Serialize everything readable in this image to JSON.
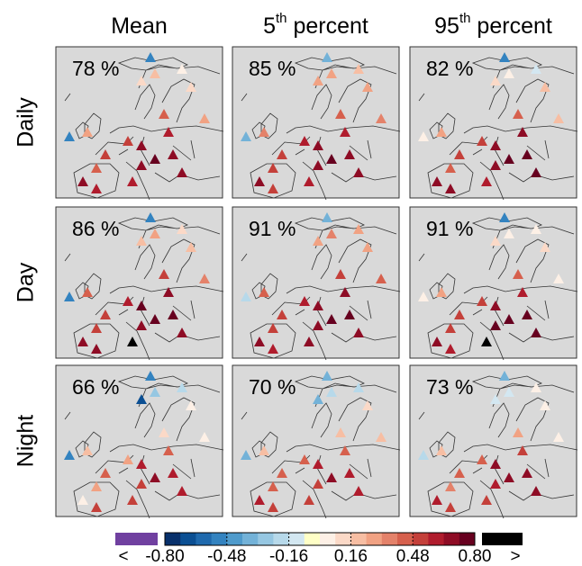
{
  "columns": [
    {
      "prefix": "Mean"
    },
    {
      "prefix": "5",
      "sup": "th",
      "rest": " percent"
    },
    {
      "prefix": "95",
      "sup": "th",
      "rest": " percent"
    }
  ],
  "rows": [
    "Daily",
    "Day",
    "Night"
  ],
  "panels": [
    [
      {
        "label": "78 %",
        "values": [
          -0.5,
          0.3,
          0.1,
          0.2,
          0.05,
          0.1,
          0.4,
          0.6,
          0.7,
          0.55,
          0.75,
          0.7,
          0.65,
          0.5,
          0.45,
          0.7,
          0.6,
          0.6,
          0.7,
          0.3,
          -0.5
        ]
      },
      {
        "label": "85 %",
        "values": [
          -0.4,
          0.35,
          0.3,
          0.3,
          0.2,
          0.25,
          0.45,
          0.6,
          0.7,
          0.6,
          0.75,
          0.7,
          0.65,
          0.5,
          0.5,
          0.65,
          0.55,
          0.6,
          0.7,
          0.35,
          -0.4
        ]
      },
      {
        "label": "82 %",
        "values": [
          0.0,
          0.3,
          0.1,
          0.0,
          -0.1,
          0.2,
          0.4,
          0.65,
          0.7,
          0.55,
          0.78,
          0.72,
          0.7,
          0.5,
          0.45,
          0.7,
          0.65,
          0.6,
          0.75,
          0.2,
          -0.5
        ]
      }
    ],
    [
      {
        "label": "86 %",
        "values": [
          -0.5,
          0.4,
          0.2,
          0.3,
          0.1,
          0.2,
          0.5,
          0.65,
          0.72,
          0.6,
          0.78,
          0.75,
          0.7,
          0.55,
          0.5,
          0.7,
          0.65,
          0.85,
          0.7,
          0.35,
          -0.5
        ]
      },
      {
        "label": "91 %",
        "values": [
          -0.2,
          0.4,
          0.3,
          0.35,
          0.3,
          0.3,
          0.5,
          0.65,
          0.7,
          0.6,
          0.75,
          0.75,
          0.7,
          0.55,
          0.5,
          0.7,
          0.6,
          0.7,
          0.7,
          0.4,
          -0.4
        ]
      },
      {
        "label": "91 %",
        "values": [
          0.0,
          0.3,
          0.1,
          0.0,
          0.0,
          0.1,
          0.4,
          0.6,
          0.7,
          0.55,
          0.78,
          0.75,
          0.72,
          0.5,
          0.5,
          0.7,
          0.6,
          0.85,
          0.75,
          0.05,
          -0.5
        ]
      }
    ],
    [
      {
        "label": "66 %",
        "values": [
          -0.5,
          0.2,
          -0.7,
          -0.3,
          -0.2,
          0.0,
          0.1,
          0.4,
          0.6,
          0.3,
          0.7,
          0.6,
          0.55,
          0.4,
          0.3,
          0.05,
          0.5,
          0.5,
          0.6,
          0.0,
          -0.5
        ]
      },
      {
        "label": "70 %",
        "values": [
          -0.4,
          0.2,
          -0.4,
          -0.2,
          -0.2,
          0.1,
          0.2,
          0.45,
          0.6,
          0.4,
          0.7,
          0.6,
          0.55,
          0.45,
          0.4,
          0.6,
          0.55,
          0.5,
          0.6,
          0.2,
          -0.4
        ]
      },
      {
        "label": "73 %",
        "values": [
          -0.2,
          0.2,
          -0.1,
          -0.1,
          0.0,
          0.05,
          0.3,
          0.5,
          0.65,
          0.4,
          0.7,
          0.65,
          0.6,
          0.45,
          0.35,
          0.6,
          0.5,
          0.5,
          0.65,
          0.0,
          -0.4
        ]
      }
    ]
  ],
  "colorbar": {
    "clim": [
      -0.8,
      0.8
    ],
    "ticks": [
      {
        "value": -0.8,
        "label": "-0.80"
      },
      {
        "value": -0.48,
        "label": "-0.48"
      },
      {
        "value": -0.16,
        "label": "-0.16"
      },
      {
        "value": 0.16,
        "label": "0.16"
      },
      {
        "value": 0.48,
        "label": "0.48"
      },
      {
        "value": 0.8,
        "label": "0.80"
      }
    ],
    "colors": [
      "#08306b",
      "#0b4f93",
      "#1f69ad",
      "#3383c0",
      "#4f9bcc",
      "#73b2d8",
      "#96c7e2",
      "#b7d9ea",
      "#d3e7f1",
      "#ffffc6",
      "#fdf0e6",
      "#fbd9c7",
      "#f7bea3",
      "#f1a283",
      "#e4826a",
      "#d6604d",
      "#c4403a",
      "#b01c2d",
      "#8e0c25",
      "#67001f"
    ],
    "under_color": "#7040a0",
    "over_color": "#000000",
    "under_label": "<",
    "over_label": ">"
  }
}
